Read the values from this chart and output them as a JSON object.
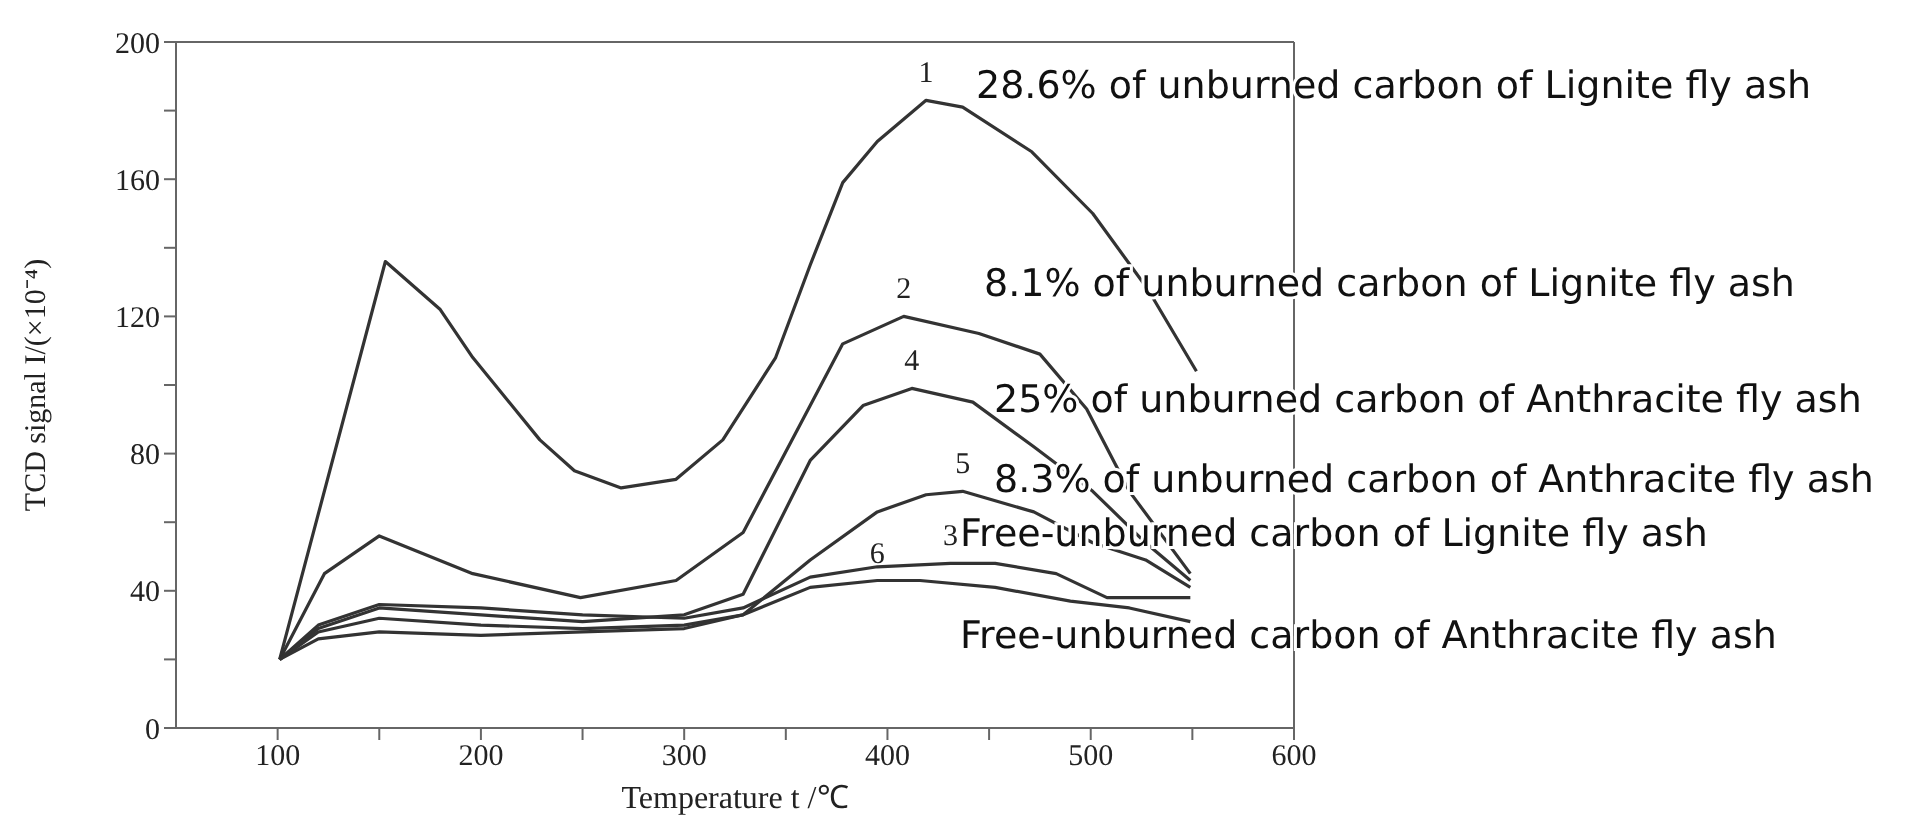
{
  "chart_data": {
    "type": "line",
    "xlabel": "Temperature   t /℃",
    "ylabel": "TCD signal I/(×10⁻⁴)",
    "xlim": [
      50,
      600
    ],
    "xticks": [
      100,
      {
        "value": 150,
        "label": null
      },
      200,
      {
        "value": 250,
        "label": null
      },
      300,
      {
        "value": 350,
        "label": null
      },
      400,
      {
        "value": 450,
        "label": null
      },
      500,
      {
        "value": 550,
        "label": null
      },
      600
    ],
    "ylim": [
      0,
      200
    ],
    "yticks": [
      0,
      {
        "value": 20,
        "label": null
      },
      40,
      {
        "value": 60,
        "label": null
      },
      80,
      {
        "value": 100,
        "label": null
      },
      120,
      {
        "value": 140,
        "label": null
      },
      160,
      {
        "value": 180,
        "label": null
      },
      200
    ],
    "grid": false,
    "legend": false,
    "marker": "none",
    "line_style": "solid",
    "series": [
      {
        "name": "1",
        "color": "#333333",
        "x": [
          101,
          153,
          180,
          196,
          229,
          246,
          269,
          296,
          319,
          345,
          362,
          378,
          395,
          419,
          437,
          471,
          501,
          528,
          552
        ],
        "values": [
          20,
          136,
          122,
          108,
          84,
          75,
          70,
          72.5,
          84,
          108,
          135,
          159,
          171,
          183,
          181,
          168,
          150,
          128,
          104
        ]
      },
      {
        "name": "2",
        "color": "#333333",
        "x": [
          101,
          123,
          150,
          196,
          249,
          296,
          329,
          362,
          378,
          408,
          445,
          475,
          498,
          519,
          549
        ],
        "values": [
          20,
          45,
          56,
          45,
          38,
          43,
          57,
          94,
          112,
          120,
          115,
          109,
          93,
          69,
          45
        ]
      },
      {
        "name": "3",
        "color": "#333333",
        "x": [
          101,
          120,
          150,
          200,
          250,
          300,
          329,
          362,
          395,
          431,
          453,
          483,
          508,
          549
        ],
        "values": [
          20,
          30,
          36,
          35,
          33,
          32,
          35,
          44,
          47,
          48,
          48,
          45,
          38,
          38
        ]
      },
      {
        "name": "4",
        "color": "#333333",
        "x": [
          101,
          120,
          150,
          200,
          250,
          300,
          329,
          362,
          388,
          412,
          442,
          472,
          501,
          527,
          549
        ],
        "values": [
          20,
          29,
          35,
          33,
          31,
          33,
          39,
          78,
          94,
          99,
          95,
          82,
          69,
          54,
          43
        ]
      },
      {
        "name": "5",
        "color": "#333333",
        "x": [
          101,
          120,
          150,
          200,
          250,
          300,
          329,
          362,
          395,
          419,
          437,
          472,
          501,
          527,
          549
        ],
        "values": [
          20,
          28,
          32,
          30,
          29,
          30,
          33,
          49,
          63,
          68,
          69,
          63,
          54,
          49,
          41
        ]
      },
      {
        "name": "6",
        "color": "#333333",
        "x": [
          101,
          120,
          150,
          200,
          250,
          300,
          329,
          362,
          395,
          416,
          453,
          490,
          519,
          549
        ],
        "values": [
          20,
          26,
          28,
          27,
          28,
          29,
          33,
          41,
          43,
          43,
          41,
          37,
          35,
          31
        ]
      }
    ],
    "annotations": [
      "28.6% of unburned carbon of Lignite fly ash",
      "8.1% of unburned carbon of Lignite fly ash",
      "25% of unburned carbon of Anthracite fly ash",
      "8.3% of unburned carbon of Anthracite fly ash",
      "Free-unburned carbon of Lignite fly ash",
      "Free-unburned carbon of Anthracite fly ash"
    ]
  }
}
